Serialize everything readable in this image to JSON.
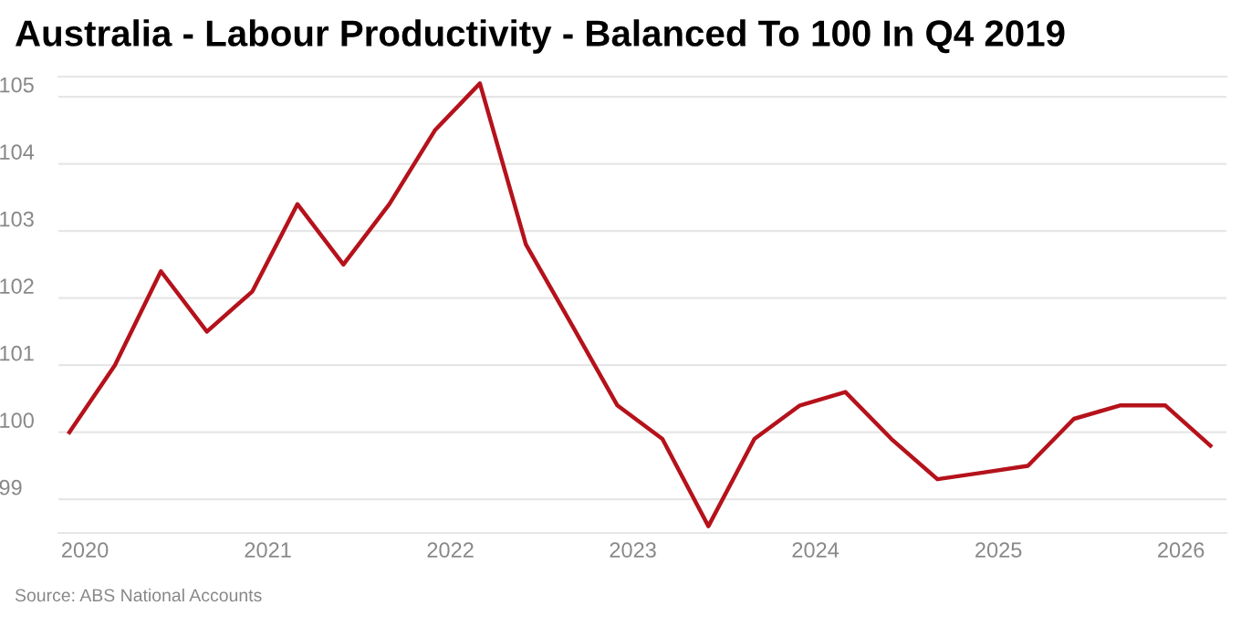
{
  "chart_data": {
    "type": "line",
    "title": "Australia - Labour Productivity - Balanced To 100 In Q4 2019",
    "x": [
      "2019-12",
      "2020-03",
      "2020-06",
      "2020-09",
      "2020-12",
      "2021-03",
      "2021-06",
      "2021-09",
      "2021-12",
      "2022-03",
      "2022-06",
      "2022-09",
      "2022-12",
      "2023-03",
      "2023-06",
      "2023-09",
      "2023-12",
      "2024-03",
      "2024-06",
      "2024-09",
      "2024-12",
      "2025-03",
      "2025-06",
      "2025-09",
      "2025-12",
      "2026-03"
    ],
    "series": [
      {
        "color": "#b5121b",
        "values": [
          100,
          101,
          102.4,
          101.5,
          102.1,
          103.4,
          102.5,
          103.4,
          104.5,
          105.2,
          102.8,
          101.6,
          100.4,
          99.9,
          98.6,
          99.9,
          100.4,
          100.6,
          99.9,
          99.3,
          99.4,
          99.5,
          100.2,
          100.4,
          100.4,
          99.8
        ]
      }
    ],
    "xlim": [
      "2019-11-09",
      "2026-04-02"
    ],
    "xticks": [
      {
        "value": "2020",
        "label": "2020"
      },
      {
        "value": "2021",
        "label": "2021"
      },
      {
        "value": "2022",
        "label": "2022"
      },
      {
        "value": "2023",
        "label": "2023"
      },
      {
        "value": "2024",
        "label": "2024"
      },
      {
        "value": "2025",
        "label": "2025"
      },
      {
        "value": "2026",
        "label": "2026"
      }
    ],
    "ylim": [
      98.5,
      105.3
    ],
    "yticks": [
      99,
      100,
      101,
      102,
      103,
      104,
      105
    ],
    "grid": "y",
    "marker": "none",
    "line_style": "solid",
    "annotations": [
      "Source: ABS National Accounts"
    ]
  }
}
